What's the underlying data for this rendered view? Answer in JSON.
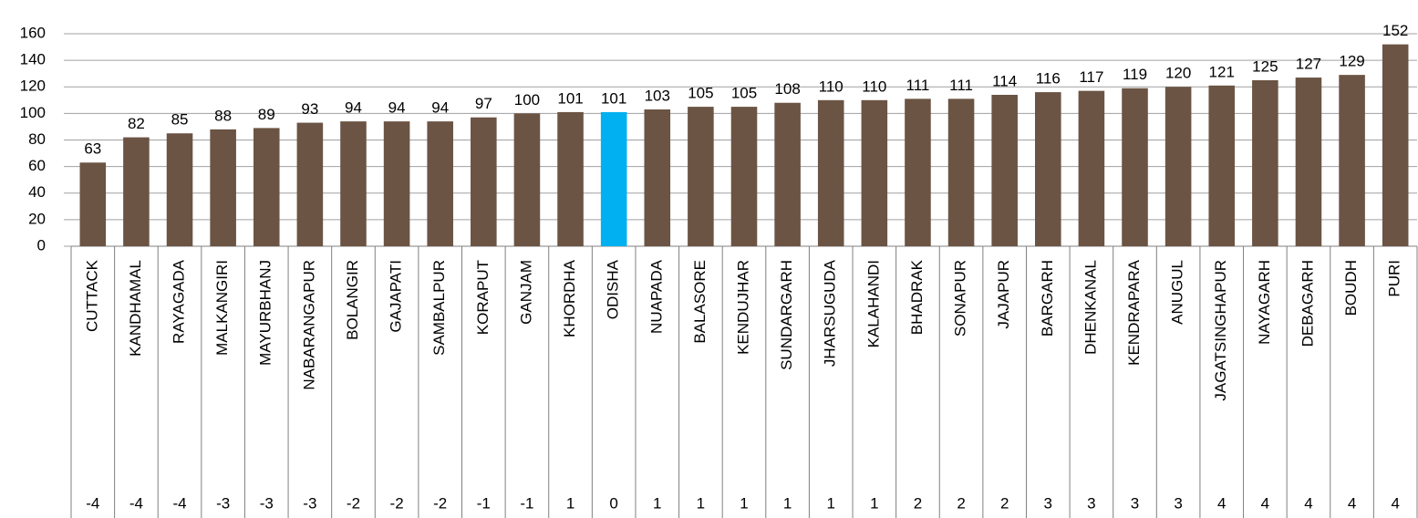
{
  "chart_data": {
    "type": "bar",
    "categories": [
      "CUTTACK",
      "KANDHAMAL",
      "RAYAGADA",
      "MALKANGIRI",
      "MAYURBHANJ",
      "NABARANGAPUR",
      "BOLANGIR",
      "GAJAPATI",
      "SAMBALPUR",
      "KORAPUT",
      "GANJAM",
      "KHORDHA",
      "ODISHA",
      "NUAPADA",
      "BALASORE",
      "KENDUJHAR",
      "SUNDARGARH",
      "JHARSUGUDA",
      "KALAHANDI",
      "BHADRAK",
      "SONAPUR",
      "JAJAPUR",
      "BARGARH",
      "DHENKANAL",
      "KENDRAPARA",
      "ANUGUL",
      "JAGATSINGHAPUR",
      "NAYAGARH",
      "DEBAGARH",
      "BOUDH",
      "PURI"
    ],
    "values": [
      63,
      82,
      85,
      88,
      89,
      93,
      94,
      94,
      94,
      97,
      100,
      101,
      101,
      103,
      105,
      105,
      108,
      110,
      110,
      111,
      111,
      114,
      116,
      117,
      119,
      120,
      121,
      125,
      127,
      129,
      152
    ],
    "row_values": [
      -4,
      -4,
      -4,
      -3,
      -3,
      -3,
      -2,
      -2,
      -2,
      -1,
      -1,
      1,
      0,
      1,
      1,
      1,
      1,
      1,
      1,
      2,
      2,
      2,
      3,
      3,
      3,
      3,
      4,
      4,
      4,
      4,
      4
    ],
    "bar_colors": [
      "#6b5444",
      "#6b5444",
      "#6b5444",
      "#6b5444",
      "#6b5444",
      "#6b5444",
      "#6b5444",
      "#6b5444",
      "#6b5444",
      "#6b5444",
      "#6b5444",
      "#6b5444",
      "#00b0f0",
      "#6b5444",
      "#6b5444",
      "#6b5444",
      "#6b5444",
      "#6b5444",
      "#6b5444",
      "#6b5444",
      "#6b5444",
      "#6b5444",
      "#6b5444",
      "#6b5444",
      "#6b5444",
      "#6b5444",
      "#6b5444",
      "#6b5444",
      "#6b5444",
      "#6b5444",
      "#6b5444"
    ],
    "ylim": [
      0,
      160
    ],
    "yticks": [
      0,
      20,
      40,
      60,
      80,
      100,
      120,
      140,
      160
    ],
    "grid": true
  }
}
